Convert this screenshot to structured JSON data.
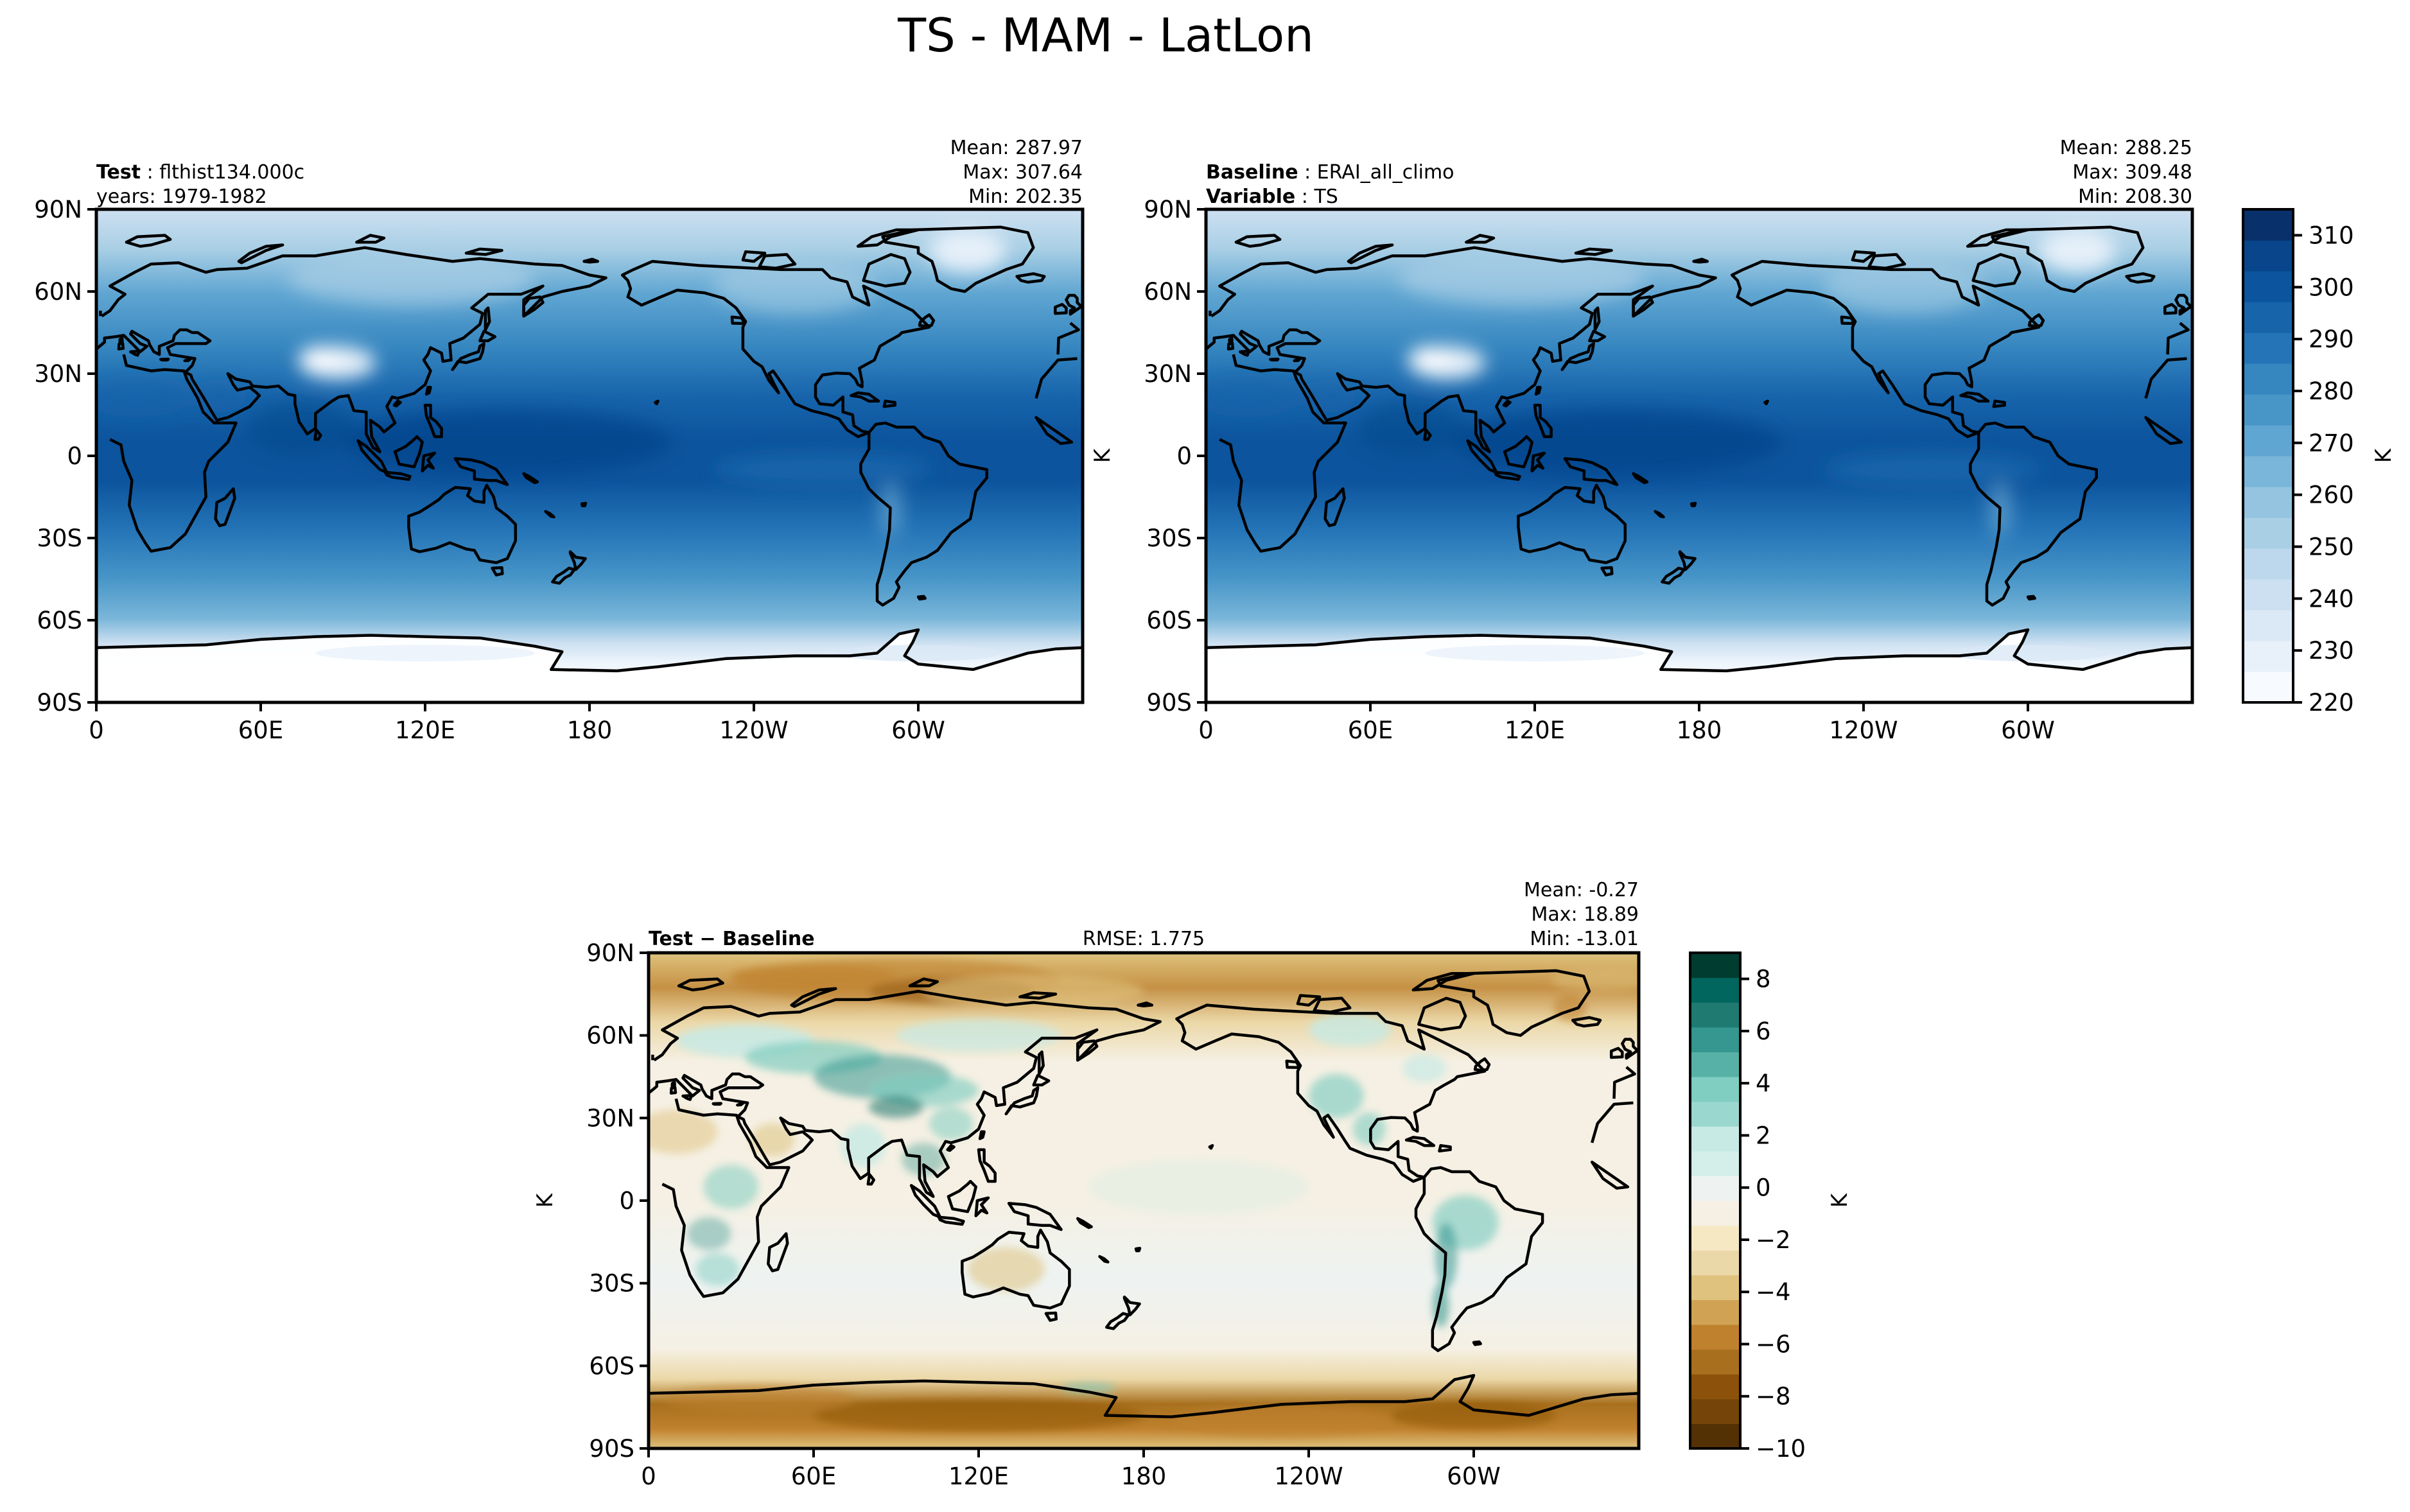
{
  "figure": {
    "title": "TS - MAM - LatLon"
  },
  "chart_data": [
    {
      "type": "heatmap",
      "id": "test",
      "label_bold": "Test",
      "label_text": "flthist134.000c",
      "sub_text": "years: 1979-1982",
      "stats": [
        "Mean: 287.97",
        "Max: 307.64",
        "Min: 202.35"
      ],
      "ylabel": "",
      "xticks": [
        "0",
        "60E",
        "120E",
        "180",
        "120W",
        "60W"
      ],
      "yticks": [
        "90N",
        "60N",
        "30N",
        "0",
        "30S",
        "60S",
        "90S"
      ],
      "xlim": [
        0,
        360
      ],
      "ylim": [
        -90,
        90
      ],
      "colormap": "Blues",
      "value_range": [
        220,
        315
      ]
    },
    {
      "type": "heatmap",
      "id": "baseline",
      "label_bold": "Baseline",
      "label_text": "ERAI_all_climo",
      "sub_bold": "Variable",
      "sub_text": "TS",
      "stats": [
        "Mean: 288.25",
        "Max: 309.48",
        "Min: 208.30"
      ],
      "ylabel": "K",
      "xticks": [
        "0",
        "60E",
        "120E",
        "180",
        "120W",
        "60W"
      ],
      "yticks": [
        "90N",
        "60N",
        "30N",
        "0",
        "30S",
        "60S",
        "90S"
      ],
      "xlim": [
        0,
        360
      ],
      "ylim": [
        -90,
        90
      ],
      "colormap": "Blues",
      "value_range": [
        220,
        315
      ],
      "colorbar": {
        "ticks": [
          "220",
          "230",
          "240",
          "250",
          "260",
          "270",
          "280",
          "290",
          "300",
          "310"
        ],
        "tick_values": [
          220,
          230,
          240,
          250,
          260,
          270,
          280,
          290,
          300,
          310
        ],
        "range": [
          220,
          315
        ],
        "label": "K",
        "colors": [
          "#f7fbff",
          "#e8f1fa",
          "#dbe9f6",
          "#cde0f1",
          "#bdd7ec",
          "#a9cfe5",
          "#94c4df",
          "#7ab6d9",
          "#60a6d2",
          "#4896c8",
          "#3686c0",
          "#2474b7",
          "#1764ab",
          "#0c549d",
          "#08458a",
          "#08306b"
        ]
      }
    },
    {
      "type": "heatmap",
      "id": "diff",
      "label_bold": "Test − Baseline",
      "rmse": "RMSE: 1.775",
      "stats": [
        "Mean: -0.27",
        "Max: 18.89",
        "Min: -13.01"
      ],
      "ylabel": "K",
      "xticks": [
        "0",
        "60E",
        "120E",
        "180",
        "120W",
        "60W"
      ],
      "yticks": [
        "90N",
        "60N",
        "30N",
        "0",
        "30S",
        "60S",
        "90S"
      ],
      "xlim": [
        0,
        360
      ],
      "ylim": [
        -90,
        90
      ],
      "colormap": "BrBG",
      "value_range": [
        -10,
        9
      ],
      "colorbar": {
        "ticks": [
          "−10",
          "−8",
          "−6",
          "−4",
          "−2",
          "0",
          "2",
          "4",
          "6",
          "8"
        ],
        "tick_values": [
          -10,
          -8,
          -6,
          -4,
          -2,
          0,
          2,
          4,
          6,
          8
        ],
        "range": [
          -10,
          9
        ],
        "label": "K",
        "colors": [
          "#543005",
          "#744408",
          "#8c510a",
          "#a8701e",
          "#bf812d",
          "#d0a354",
          "#dfc27d",
          "#ebd8a8",
          "#f6e8c3",
          "#f5f0e3",
          "#eef3f2",
          "#d4eeea",
          "#c7eae5",
          "#9ad7cf",
          "#80cdc1",
          "#58b1a6",
          "#35978f",
          "#1f7a72",
          "#01665e",
          "#003c30"
        ]
      }
    }
  ]
}
